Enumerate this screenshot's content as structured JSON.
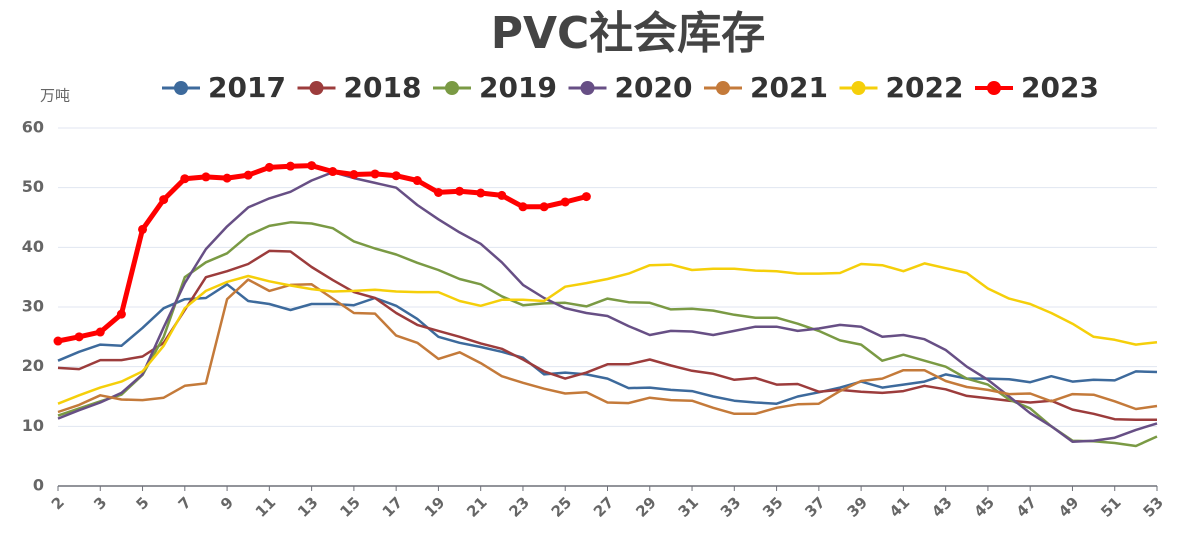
{
  "chart_data": {
    "type": "line",
    "title": "PVC社会库存",
    "y_label": "万吨",
    "categories": [
      "2",
      null,
      "3",
      null,
      "5",
      null,
      "7",
      null,
      "9",
      null,
      "11",
      null,
      "13",
      null,
      "15",
      null,
      "17",
      null,
      "19",
      null,
      "21",
      null,
      "23",
      null,
      "25",
      null,
      "27",
      null,
      "29",
      null,
      "31",
      null,
      "33",
      null,
      "35",
      null,
      "37",
      null,
      "39",
      null,
      "41",
      null,
      "43",
      null,
      "45",
      null,
      "47",
      null,
      "49",
      null,
      "51",
      null,
      "53"
    ],
    "ylim": [
      0,
      60
    ],
    "yticks": [
      0,
      10,
      20,
      30,
      40,
      50,
      60
    ],
    "grid": true,
    "legend": "top",
    "series": [
      {
        "name": "2017",
        "color": "#3d6a9c",
        "values": [
          21,
          22.5,
          23.7,
          23.5,
          26.5,
          29.8,
          31.3,
          31.5,
          33.8,
          31,
          30.5,
          29.5,
          30.5,
          30.5,
          30.3,
          31.5,
          30.2,
          28,
          25,
          24,
          23.3,
          22.5,
          21.5,
          18.7,
          19,
          18.7,
          18,
          16.4,
          16.5,
          16.1,
          15.9,
          15,
          14.3,
          14,
          13.8,
          15,
          15.7,
          16.5,
          17.5,
          16.5,
          17,
          17.5,
          18.7,
          18,
          18,
          17.9,
          17.4,
          18.4,
          17.5,
          17.8,
          17.7,
          19.2,
          19.1
        ]
      },
      {
        "name": "2018",
        "color": "#9c3c3c",
        "values": [
          19.8,
          19.6,
          21.1,
          21.1,
          21.7,
          24,
          29.5,
          35,
          36,
          37.2,
          39.4,
          39.3,
          36.7,
          34.5,
          32.5,
          31.5,
          29,
          27,
          26,
          25,
          23.9,
          23,
          21.2,
          19.2,
          18,
          19,
          20.4,
          20.4,
          21.2,
          20.2,
          19.3,
          18.8,
          17.8,
          18.1,
          17,
          17.1,
          15.8,
          16.1,
          15.8,
          15.6,
          15.9,
          16.8,
          16.2,
          15.1,
          14.7,
          14.3,
          14,
          14.3,
          12.8,
          12.1,
          11.2,
          11.1,
          11.1
        ]
      },
      {
        "name": "2019",
        "color": "#7a9a44",
        "values": [
          11.8,
          13,
          14.2,
          15.3,
          18.6,
          25,
          35,
          37.5,
          39,
          42,
          43.6,
          44.2,
          44,
          43.2,
          41,
          39.8,
          38.8,
          37.4,
          36.2,
          34.7,
          33.8,
          31.8,
          30.3,
          30.6,
          30.7,
          30.1,
          31.4,
          30.8,
          30.7,
          29.6,
          29.7,
          29.4,
          28.7,
          28.2,
          28.2,
          27.2,
          26,
          24.4,
          23.7,
          21,
          22,
          21,
          20,
          18,
          17,
          14.5,
          13,
          10,
          7.6,
          7.5,
          7.2,
          6.7,
          8.3
        ]
      },
      {
        "name": "2020",
        "color": "#674f85",
        "values": [
          11.3,
          12.7,
          14,
          15.6,
          18.7,
          26.6,
          34,
          39.7,
          43.5,
          46.7,
          48.2,
          49.3,
          51.2,
          52.6,
          51.6,
          50.8,
          50,
          47.1,
          44.7,
          42.5,
          40.6,
          37.5,
          33.7,
          31.5,
          29.8,
          29,
          28.5,
          26.8,
          25.3,
          26,
          25.9,
          25.3,
          26,
          26.7,
          26.7,
          26,
          26.4,
          27,
          26.7,
          25,
          25.3,
          24.6,
          22.8,
          20,
          17.8,
          15,
          12.2,
          10,
          7.4,
          7.6,
          8.1,
          9.4,
          10.5
        ]
      },
      {
        "name": "2021",
        "color": "#c47a3a",
        "values": [
          12.4,
          13.6,
          15.2,
          14.5,
          14.4,
          14.8,
          16.8,
          17.2,
          31.3,
          34.6,
          32.7,
          33.7,
          33.8,
          31.4,
          29,
          28.9,
          25.2,
          24,
          21.3,
          22.4,
          20.6,
          18.4,
          17.3,
          16.3,
          15.5,
          15.7,
          14,
          13.9,
          14.8,
          14.4,
          14.3,
          13.1,
          12.1,
          12.1,
          13.1,
          13.7,
          13.8,
          15.9,
          17.6,
          18,
          19.4,
          19.4,
          17.6,
          16.6,
          16.1,
          15.4,
          15.5,
          14.2,
          15.4,
          15.3,
          14.2,
          12.9,
          13.4
        ]
      },
      {
        "name": "2022",
        "color": "#f5cf0a",
        "values": [
          13.8,
          15.2,
          16.5,
          17.5,
          19.2,
          23.5,
          29.8,
          32.7,
          34.2,
          35.2,
          34.3,
          33.6,
          33,
          32.6,
          32.7,
          32.9,
          32.6,
          32.5,
          32.5,
          31,
          30.2,
          31.2,
          31.2,
          31,
          33.4,
          34,
          34.7,
          35.6,
          37,
          37.1,
          36.2,
          36.4,
          36.4,
          36.1,
          36,
          35.6,
          35.6,
          35.7,
          37.2,
          37,
          36,
          37.3,
          36.5,
          35.7,
          33.1,
          31.4,
          30.5,
          29,
          27.2,
          25,
          24.5,
          23.7,
          24.1
        ]
      },
      {
        "name": "2023",
        "color": "#ff0000",
        "values": [
          24.3,
          25,
          25.8,
          28.8,
          43,
          48,
          51.5,
          51.8,
          51.6,
          52.1,
          53.4,
          53.6,
          53.7,
          52.7,
          52.2,
          52.3,
          52,
          51.2,
          49.2,
          49.4,
          49.1,
          48.7,
          46.8,
          46.8,
          47.6,
          48.5,
          null,
          null,
          null,
          null,
          null,
          null,
          null,
          null,
          null,
          null,
          null,
          null,
          null,
          null,
          null,
          null,
          null,
          null,
          null,
          null,
          null,
          null,
          null,
          null,
          null,
          null,
          null
        ]
      }
    ]
  }
}
